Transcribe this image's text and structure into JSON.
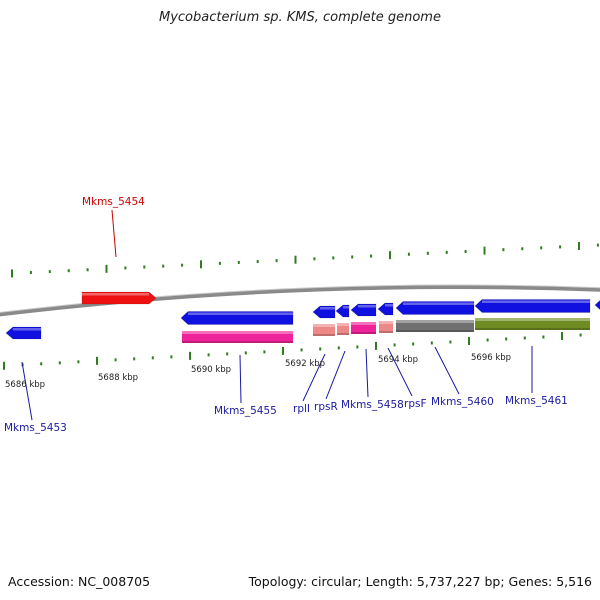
{
  "title": "Mycobacterium sp. KMS, complete genome",
  "footer": {
    "accession": "Accession: NC_008705",
    "summary": "Topology: circular; Length: 5,737,227 bp; Genes: 5,516"
  },
  "colors": {
    "backbone": "#8a8a8a",
    "tick": "#2e7d1e",
    "blue_gene": "#1010e0",
    "red_gene": "#ee1111",
    "magenta_feature": "#ee2299",
    "salmon_feature": "#ee8888",
    "gray_feature": "#707070",
    "olive_feature": "#6e8c22",
    "label_blue": "#1a1aa0",
    "label_red": "#cc0000"
  },
  "kbp_ticks": [
    "5686 kbp",
    "5688 kbp",
    "5690 kbp",
    "5692 kbp",
    "5694 kbp",
    "5696 kbp"
  ],
  "gene_labels": [
    {
      "id": "mkms-5453",
      "text": "Mkms_5453",
      "color": "blue"
    },
    {
      "id": "mkms-5454",
      "text": "Mkms_5454",
      "color": "red"
    },
    {
      "id": "mkms-5455",
      "text": "Mkms_5455",
      "color": "blue"
    },
    {
      "id": "rpll",
      "text": "rplI",
      "color": "blue"
    },
    {
      "id": "rpsr",
      "text": "rpsR",
      "color": "blue"
    },
    {
      "id": "mkms-5458",
      "text": "Mkms_5458",
      "color": "blue"
    },
    {
      "id": "rpsf",
      "text": "rpsF",
      "color": "blue"
    },
    {
      "id": "mkms-5460",
      "text": "Mkms_5460",
      "color": "blue"
    },
    {
      "id": "mkms-5461",
      "text": "Mkms_5461",
      "color": "blue"
    }
  ]
}
